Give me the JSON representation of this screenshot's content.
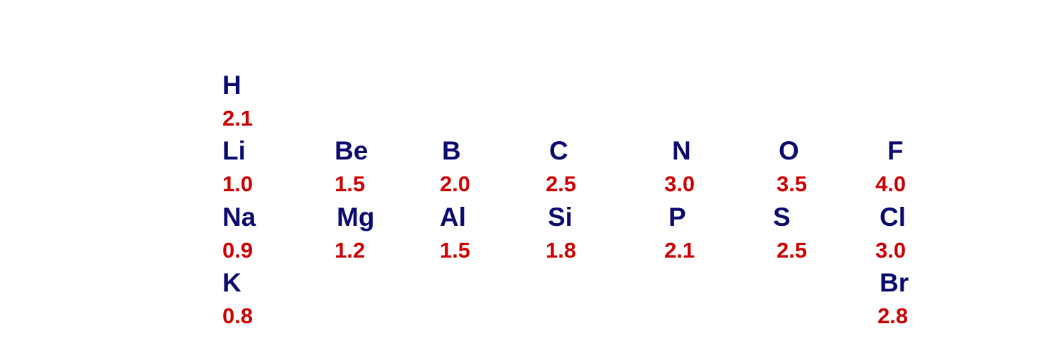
{
  "colors": {
    "symbol": "#0a0a6e",
    "value": "#cc0000",
    "background": "#ffffff"
  },
  "elements": [
    {
      "symbol": "H",
      "value": "2.1"
    },
    {
      "symbol": "Li",
      "value": "1.0"
    },
    {
      "symbol": "Be",
      "value": "1.5"
    },
    {
      "symbol": "B",
      "value": "2.0"
    },
    {
      "symbol": "C",
      "value": "2.5"
    },
    {
      "symbol": "N",
      "value": "3.0"
    },
    {
      "symbol": "O",
      "value": "3.5"
    },
    {
      "symbol": "F",
      "value": "4.0"
    },
    {
      "symbol": "Na",
      "value": "0.9"
    },
    {
      "symbol": "Mg",
      "value": "1.2"
    },
    {
      "symbol": "Al",
      "value": "1.5"
    },
    {
      "symbol": "Si",
      "value": "1.8"
    },
    {
      "symbol": "P",
      "value": "2.1"
    },
    {
      "symbol": "S",
      "value": "2.5"
    },
    {
      "symbol": "Cl",
      "value": "3.0"
    },
    {
      "symbol": "K",
      "value": "0.8"
    },
    {
      "symbol": "Br",
      "value": "2.8"
    }
  ]
}
